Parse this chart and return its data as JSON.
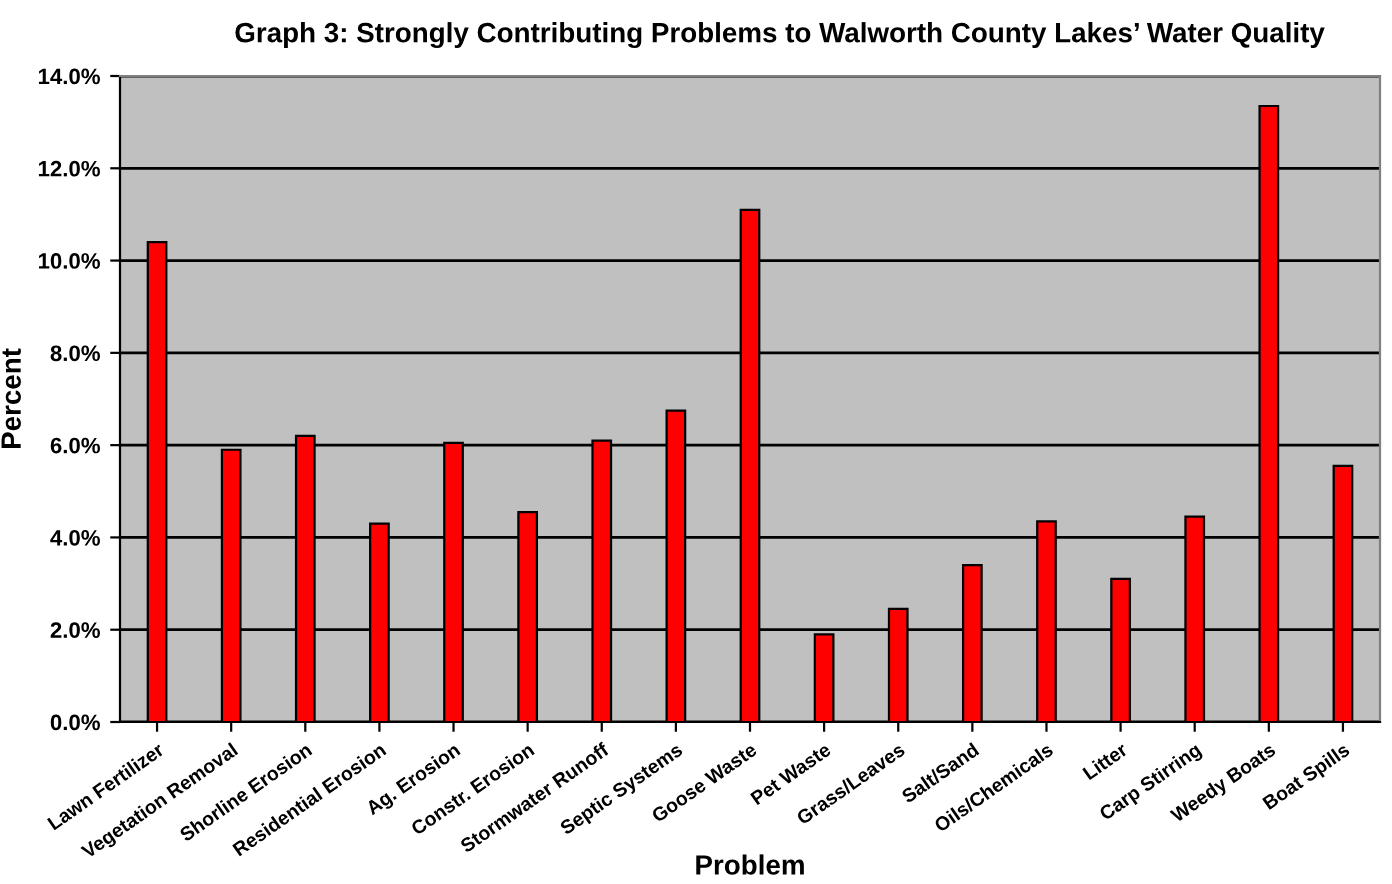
{
  "chart_data": {
    "type": "bar",
    "title": "Graph 3: Strongly Contributing Problems to Walworth County Lakes’ Water Quality",
    "xlabel": "Problem",
    "ylabel": "Percent",
    "categories": [
      "Lawn Fertilizer",
      "Vegetation Removal",
      "Shorline Erosion",
      "Residential Erosion",
      "Ag. Erosion",
      "Constr. Erosion",
      "Stormwater Runoff",
      "Septic Systems",
      "Goose Waste",
      "Pet Waste",
      "Grass/Leaves",
      "Salt/Sand",
      "Oils/Chemicals",
      "Litter",
      "Carp Stirring",
      "Weedy Boats",
      "Boat Spills"
    ],
    "values": [
      10.4,
      5.9,
      6.2,
      4.3,
      6.05,
      4.55,
      6.1,
      6.75,
      11.1,
      1.9,
      2.45,
      3.4,
      4.35,
      3.1,
      4.45,
      13.35,
      5.55
    ],
    "color": "#ff0000",
    "ylim": [
      0,
      14
    ],
    "yticks": [
      {
        "value": 0,
        "label": "0.0%"
      },
      {
        "value": 2,
        "label": "2.0%"
      },
      {
        "value": 4,
        "label": "4.0%"
      },
      {
        "value": 6,
        "label": "6.0%"
      },
      {
        "value": 8,
        "label": "8.0%"
      },
      {
        "value": 10,
        "label": "10.0%"
      },
      {
        "value": 12,
        "label": "12.0%"
      },
      {
        "value": 14,
        "label": "14.0%"
      }
    ],
    "grid": "y",
    "legend": false
  }
}
